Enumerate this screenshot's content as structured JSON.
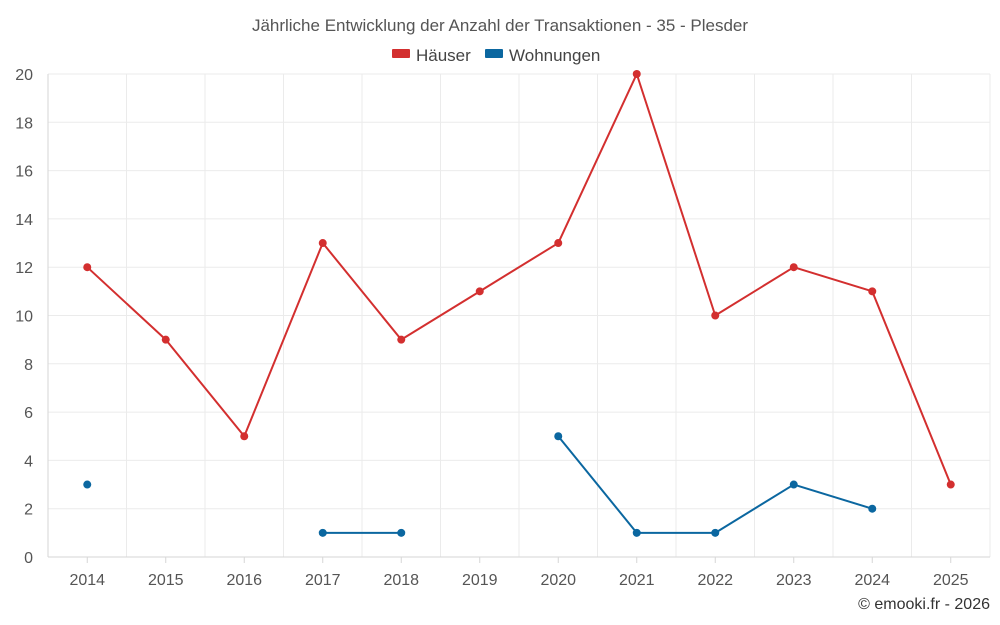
{
  "chart_data": {
    "type": "line",
    "title": "Jährliche Entwicklung der Anzahl der Transaktionen - 35 - Plesder",
    "categories": [
      "2014",
      "2015",
      "2016",
      "2017",
      "2018",
      "2019",
      "2020",
      "2021",
      "2022",
      "2023",
      "2024",
      "2025"
    ],
    "series": [
      {
        "name": "Häuser",
        "color": "#d32f2f",
        "values": [
          12,
          9,
          5,
          13,
          9,
          11,
          13,
          20,
          10,
          12,
          11,
          3
        ]
      },
      {
        "name": "Wohnungen",
        "color": "#0b67a0",
        "values": [
          3,
          null,
          null,
          1,
          1,
          null,
          5,
          1,
          1,
          3,
          2,
          null
        ]
      }
    ],
    "ylim": [
      0,
      20
    ],
    "yticks": [
      0,
      2,
      4,
      6,
      8,
      10,
      12,
      14,
      16,
      18,
      20
    ],
    "grid": true,
    "legend": "top-center"
  },
  "credit": "© emooki.fr - 2026"
}
